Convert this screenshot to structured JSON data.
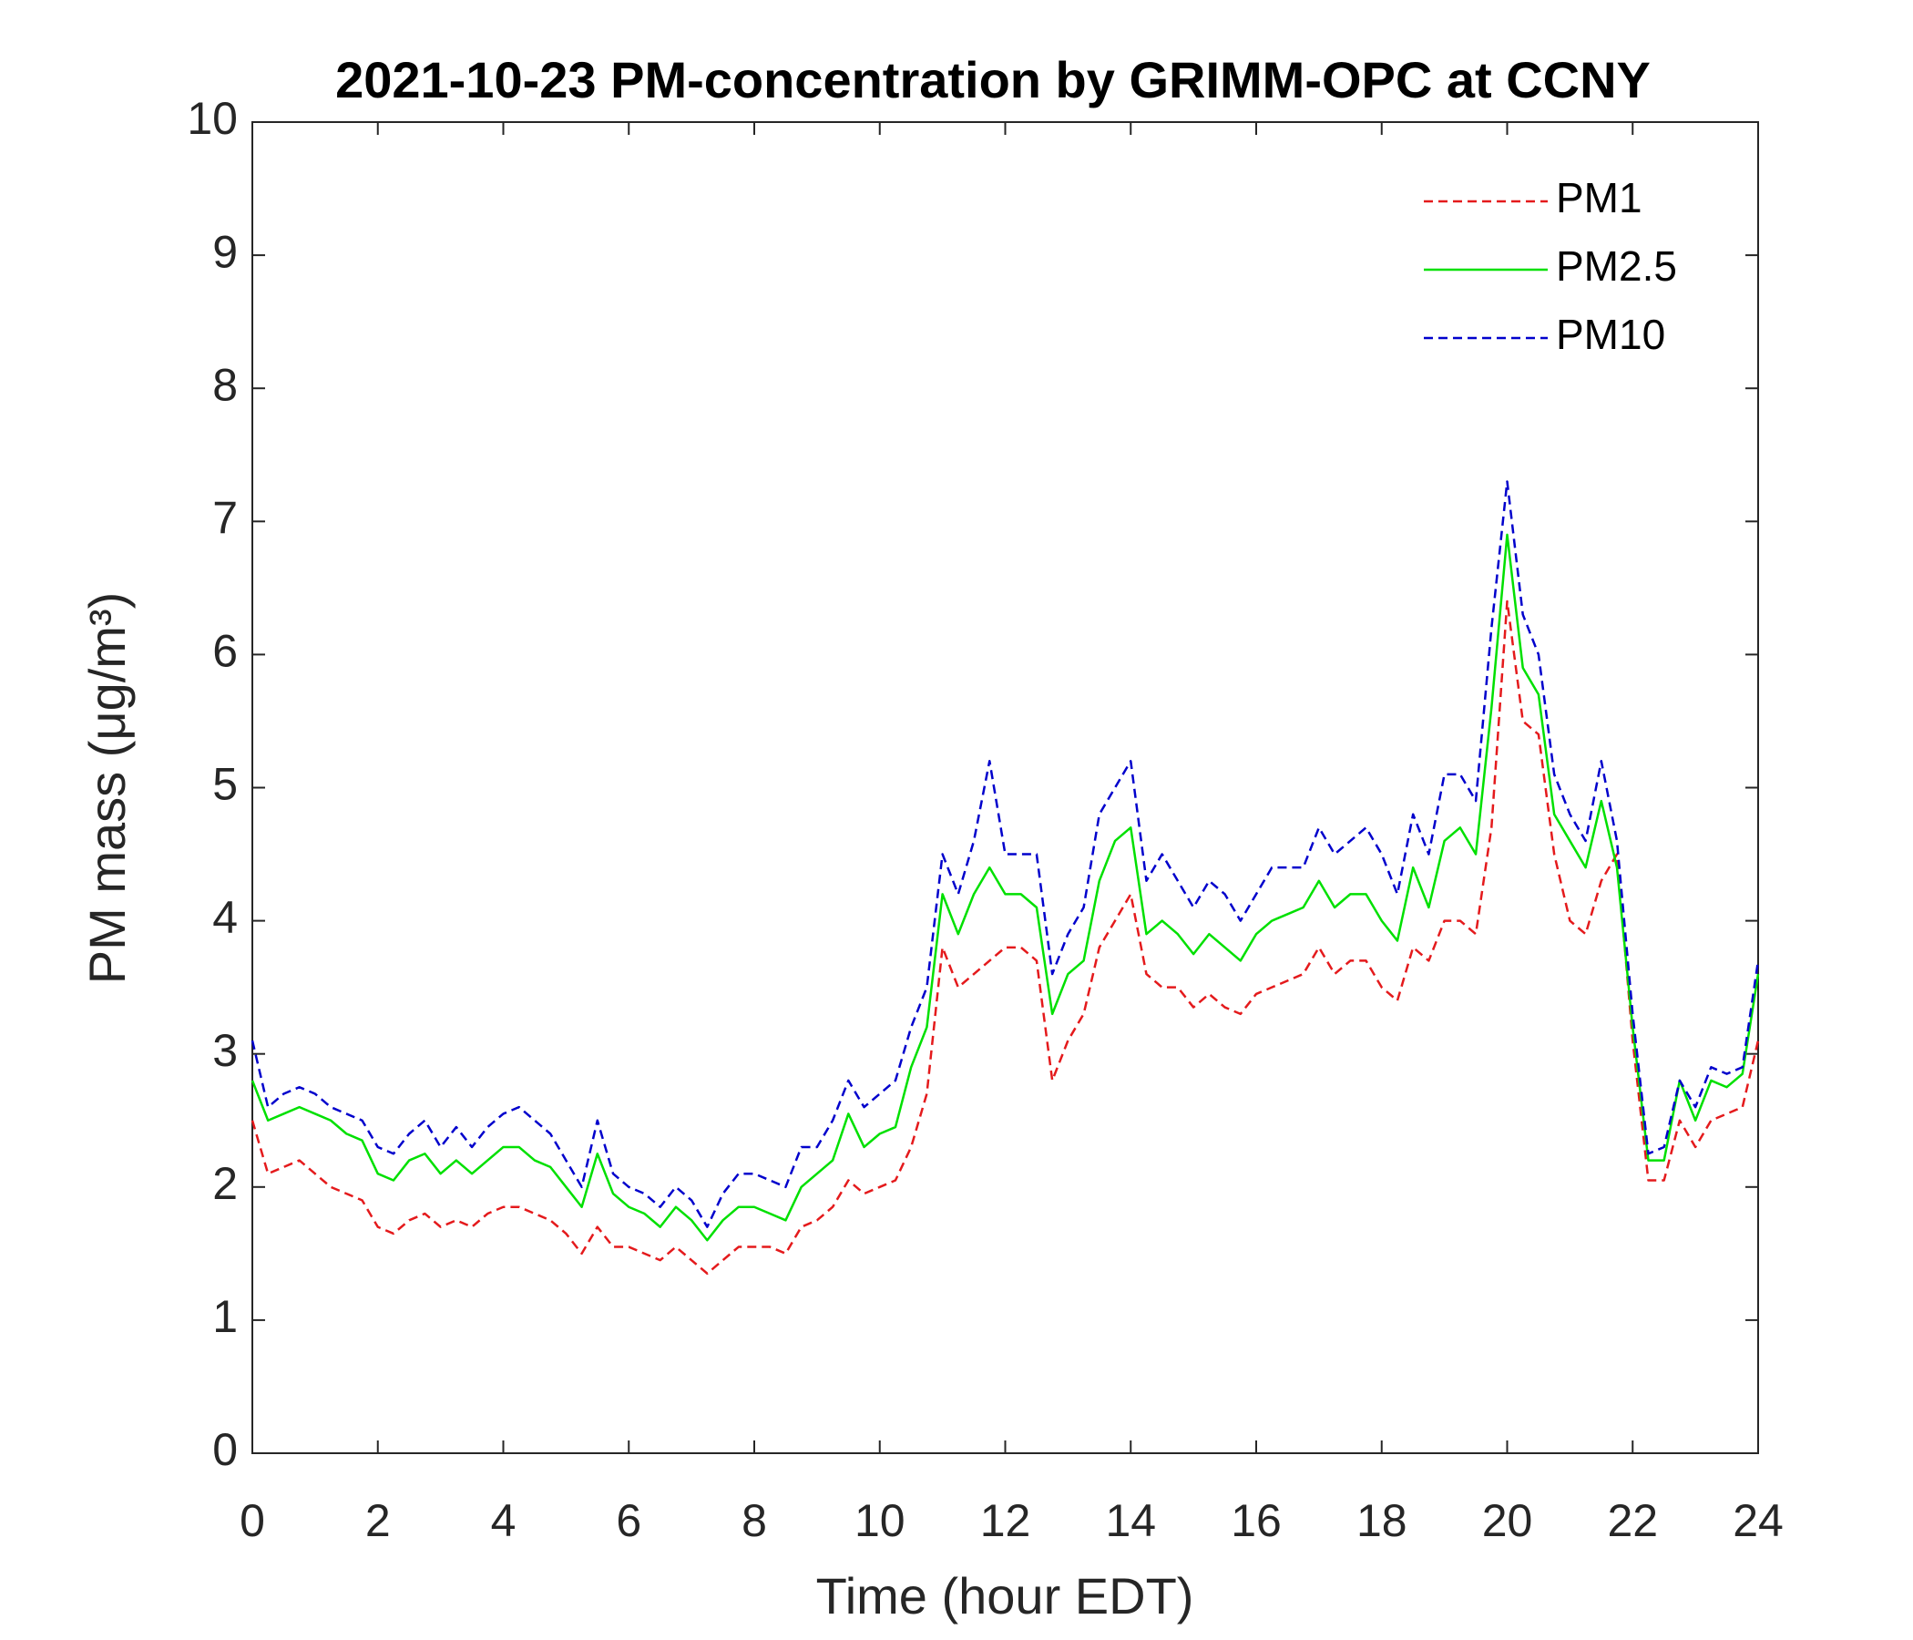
{
  "chart_data": {
    "type": "line",
    "title": "2021-10-23 PM-concentration by GRIMM-OPC at CCNY",
    "x_label": "Time (hour EDT)",
    "y_label": "PM mass (μg/m³)",
    "x": [
      0,
      0.25,
      0.5,
      0.75,
      1,
      1.25,
      1.5,
      1.75,
      2,
      2.25,
      2.5,
      2.75,
      3,
      3.25,
      3.5,
      3.75,
      4,
      4.25,
      4.5,
      4.75,
      5,
      5.25,
      5.5,
      5.75,
      6,
      6.25,
      6.5,
      6.75,
      7,
      7.25,
      7.5,
      7.75,
      8,
      8.25,
      8.5,
      8.75,
      9,
      9.25,
      9.5,
      9.75,
      10,
      10.25,
      10.5,
      10.75,
      11,
      11.25,
      11.5,
      11.75,
      12,
      12.25,
      12.5,
      12.75,
      13,
      13.25,
      13.5,
      13.75,
      14,
      14.25,
      14.5,
      14.75,
      15,
      15.25,
      15.5,
      15.75,
      16,
      16.25,
      16.5,
      16.75,
      17,
      17.25,
      17.5,
      17.75,
      18,
      18.25,
      18.5,
      18.75,
      19,
      19.25,
      19.5,
      19.75,
      20,
      20.25,
      20.5,
      20.75,
      21,
      21.25,
      21.5,
      21.75,
      22,
      22.25,
      22.5,
      22.75,
      23,
      23.25,
      23.5,
      23.75,
      24
    ],
    "series": [
      {
        "name": "PM1",
        "color": "#e41a1c",
        "dash": true,
        "values": [
          2.5,
          2.1,
          2.15,
          2.2,
          2.1,
          2.0,
          1.95,
          1.9,
          1.7,
          1.65,
          1.75,
          1.8,
          1.7,
          1.75,
          1.7,
          1.8,
          1.85,
          1.85,
          1.8,
          1.75,
          1.65,
          1.5,
          1.7,
          1.55,
          1.55,
          1.5,
          1.45,
          1.55,
          1.45,
          1.35,
          1.45,
          1.55,
          1.55,
          1.55,
          1.5,
          1.7,
          1.75,
          1.85,
          2.05,
          1.95,
          2.0,
          2.05,
          2.3,
          2.7,
          3.8,
          3.5,
          3.6,
          3.7,
          3.8,
          3.8,
          3.7,
          2.8,
          3.1,
          3.3,
          3.8,
          4.0,
          4.2,
          3.6,
          3.5,
          3.5,
          3.35,
          3.45,
          3.35,
          3.3,
          3.45,
          3.5,
          3.55,
          3.6,
          3.8,
          3.6,
          3.7,
          3.7,
          3.5,
          3.4,
          3.8,
          3.7,
          4.0,
          4.0,
          3.9,
          4.7,
          6.4,
          5.5,
          5.4,
          4.5,
          4.0,
          3.9,
          4.3,
          4.5,
          3.1,
          2.05,
          2.05,
          2.5,
          2.3,
          2.5,
          2.55,
          2.6,
          3.1
        ]
      },
      {
        "name": "PM2.5",
        "color": "#00e000",
        "dash": false,
        "values": [
          2.8,
          2.5,
          2.55,
          2.6,
          2.55,
          2.5,
          2.4,
          2.35,
          2.1,
          2.05,
          2.2,
          2.25,
          2.1,
          2.2,
          2.1,
          2.2,
          2.3,
          2.3,
          2.2,
          2.15,
          2.0,
          1.85,
          2.25,
          1.95,
          1.85,
          1.8,
          1.7,
          1.85,
          1.75,
          1.6,
          1.75,
          1.85,
          1.85,
          1.8,
          1.75,
          2.0,
          2.1,
          2.2,
          2.55,
          2.3,
          2.4,
          2.45,
          2.9,
          3.2,
          4.2,
          3.9,
          4.2,
          4.4,
          4.2,
          4.2,
          4.1,
          3.3,
          3.6,
          3.7,
          4.3,
          4.6,
          4.7,
          3.9,
          4.0,
          3.9,
          3.75,
          3.9,
          3.8,
          3.7,
          3.9,
          4.0,
          4.05,
          4.1,
          4.3,
          4.1,
          4.2,
          4.2,
          4.0,
          3.85,
          4.4,
          4.1,
          4.6,
          4.7,
          4.5,
          5.6,
          6.9,
          5.9,
          5.7,
          4.8,
          4.6,
          4.4,
          4.9,
          4.4,
          3.2,
          2.2,
          2.2,
          2.8,
          2.5,
          2.8,
          2.75,
          2.85,
          3.6
        ]
      },
      {
        "name": "PM10",
        "color": "#0000cc",
        "dash": true,
        "values": [
          3.1,
          2.6,
          2.7,
          2.75,
          2.7,
          2.6,
          2.55,
          2.5,
          2.3,
          2.25,
          2.4,
          2.5,
          2.3,
          2.45,
          2.3,
          2.45,
          2.55,
          2.6,
          2.5,
          2.4,
          2.2,
          2.0,
          2.5,
          2.1,
          2.0,
          1.95,
          1.85,
          2.0,
          1.9,
          1.7,
          1.95,
          2.1,
          2.1,
          2.05,
          2.0,
          2.3,
          2.3,
          2.5,
          2.8,
          2.6,
          2.7,
          2.8,
          3.2,
          3.5,
          4.5,
          4.2,
          4.6,
          5.2,
          4.5,
          4.5,
          4.5,
          3.6,
          3.9,
          4.1,
          4.8,
          5.0,
          5.2,
          4.3,
          4.5,
          4.3,
          4.1,
          4.3,
          4.2,
          4.0,
          4.2,
          4.4,
          4.4,
          4.4,
          4.7,
          4.5,
          4.6,
          4.7,
          4.5,
          4.2,
          4.8,
          4.5,
          5.1,
          5.1,
          4.9,
          6.2,
          7.3,
          6.3,
          6.0,
          5.1,
          4.8,
          4.6,
          5.2,
          4.6,
          3.3,
          2.25,
          2.3,
          2.8,
          2.6,
          2.9,
          2.85,
          2.9,
          3.7
        ]
      }
    ],
    "xlim": [
      0,
      24
    ],
    "xticks": [
      0,
      2,
      4,
      6,
      8,
      10,
      12,
      14,
      16,
      18,
      20,
      22,
      24
    ],
    "ylim": [
      0,
      10
    ],
    "yticks": [
      0,
      1,
      2,
      3,
      4,
      5,
      6,
      7,
      8,
      9,
      10
    ],
    "grid": false,
    "legend": "upper right"
  }
}
